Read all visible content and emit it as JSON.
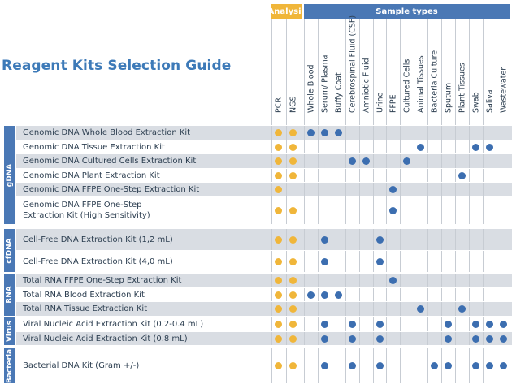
{
  "title": "Reagent Kits Selection Guide",
  "analysis_header": "Analysis",
  "sample_header": "Sample types",
  "colors": {
    "analysis": "#f0b63a",
    "sample": "#4a78b5",
    "shade": "#d9dde3",
    "dot_blue": "#3c6eb0"
  },
  "columns": [
    "PCR",
    "NGS",
    "Whole Blood",
    "Serum/ Plasma",
    "Buffy Coat",
    "Cerebrospinal Fluid (CSF)",
    "Amniotic Fluid",
    "Urine",
    "FFPE",
    "Cultured Cells",
    "Animal Tissues",
    "Bacteria Culture",
    "Sputum",
    "Plant Tissues",
    "Swab",
    "Saliva",
    "Wastewater"
  ],
  "groups": [
    {
      "label": "gDNA",
      "rows": [
        {
          "kit": "Genomic DNA Whole Blood Extraction Kit",
          "marks": [
            0,
            1,
            2,
            3,
            4
          ]
        },
        {
          "kit": "Genomic DNA Tissue Extraction Kit",
          "marks": [
            0,
            1,
            10,
            14,
            15
          ]
        },
        {
          "kit": "Genomic DNA Cultured Cells Extraction Kit",
          "marks": [
            0,
            1,
            5,
            6,
            9
          ]
        },
        {
          "kit": "Genomic DNA Plant Extraction Kit",
          "marks": [
            0,
            1,
            13
          ]
        },
        {
          "kit": "Genomic DNA FFPE One-Step Extraction Kit",
          "marks": [
            0,
            8
          ]
        },
        {
          "kit": "Genomic DNA FFPE One-Step\nExtraction Kit (High Sensitivity)",
          "marks": [
            0,
            1,
            8
          ]
        }
      ]
    },
    {
      "label": "cfDNA",
      "rows": [
        {
          "kit": "Cell-Free DNA Extraction Kit (1,2 mL)",
          "marks": [
            0,
            1,
            3,
            7
          ]
        },
        {
          "kit": "Cell-Free DNA Extraction Kit (4,0 mL)",
          "marks": [
            0,
            1,
            3,
            7
          ]
        }
      ]
    },
    {
      "label": "RNA",
      "rows": [
        {
          "kit": "Total RNA FFPE One-Step Extraction Kit",
          "marks": [
            0,
            1,
            8
          ]
        },
        {
          "kit": "Total RNA Blood Extraction Kit",
          "marks": [
            0,
            1,
            2,
            3,
            4
          ]
        },
        {
          "kit": "Total RNA Tissue Extraction Kit",
          "marks": [
            0,
            1,
            10,
            13
          ]
        }
      ]
    },
    {
      "label": "Virus",
      "rows": [
        {
          "kit": "Viral Nucleic Acid Extraction Kit (0.2-0.4 mL)",
          "marks": [
            0,
            1,
            3,
            5,
            7,
            12,
            14,
            15,
            16
          ]
        },
        {
          "kit": "Viral Nucleic Acid Extraction Kit (0.8 mL)",
          "marks": [
            0,
            1,
            3,
            5,
            7,
            12,
            14,
            15,
            16
          ]
        }
      ]
    },
    {
      "label": "Bacteria",
      "rows": [
        {
          "kit": "Bacterial DNA Kit (Gram +/-)",
          "marks": [
            0,
            1,
            3,
            5,
            7,
            11,
            12,
            14,
            15,
            16
          ]
        }
      ]
    }
  ]
}
